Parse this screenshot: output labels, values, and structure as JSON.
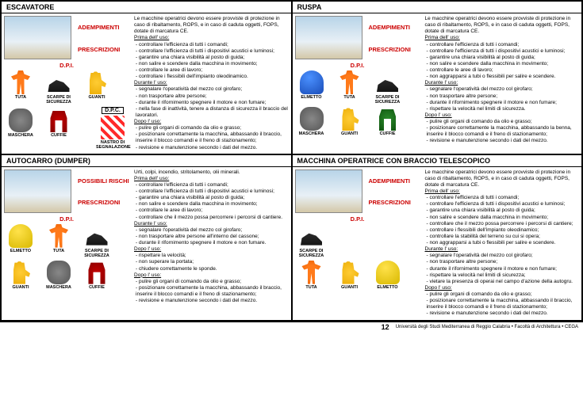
{
  "footer": {
    "page": "12",
    "credit": "Università degli Studi Mediterranea di Reggio Calabria • Facoltà di Architettura • CEGA",
    "sub": "Tesi di Laurea"
  },
  "common_adempimenti": "Le macchine operatrici devono essere provviste di protezione in caso di ribaltamento, ROPS, e in caso di caduta oggetti, FOPS, dotate di marcatura CE.",
  "labels": {
    "adem": "ADEMPIMENTI",
    "presc": "PRESCRIZIONI",
    "dpi": "D.P.I.",
    "dpc": "D.P.C.",
    "rischi": "POSSIBILI RISCHI"
  },
  "dpi_names": {
    "tuta": "TUTA",
    "scarpe": "SCARPE DI SICUREZZA",
    "guanti": "GUANTI",
    "elmetto": "ELMETTO",
    "maschera": "MASCHERA",
    "cuffie": "CUFFIE",
    "nastro": "NASTRO DI SEGNALAZIONE"
  },
  "q1": {
    "title": "ESCAVATORE",
    "dpi_row1": [
      "tuta",
      "scarpe",
      "guanti"
    ],
    "dpi_row2": [
      "maschera",
      "cuffie"
    ],
    "dpc": [
      "nastro"
    ],
    "phases": [
      {
        "h": "Prima dell' uso:",
        "items": [
          "controllare l'efficienza di tutti i comandi;",
          "controllare l'efficienza di tutti i dispositivi acustici e luminosi;",
          "garantire una chiara visibilità al posto di guida;",
          "non salire e scendere dalla macchina in movimento;",
          "controllare le aree di lavoro;",
          "controllare i flessibili dell'impianto oleodinamico."
        ]
      },
      {
        "h": "Durante l' uso:",
        "items": [
          "segnalare l'operatività del mezzo col girofaro;",
          "non trasportare altre persone;",
          "durante il rifornimento spegnere il motore e non fumare;",
          "nella fase di inattività, tenere a distanza di sicurezza il braccio del lavoratori."
        ]
      },
      {
        "h": "Dopo l' uso:",
        "items": [
          "pulire gli organi di comando da olio e grasso;",
          "posizionare correttamente la macchina, abbassando il braccio, inserire il blocco comandi e il freno di stazionamento;",
          "revisione e manutenzione secondo i dati del mezzo."
        ]
      }
    ]
  },
  "q2": {
    "title": "RUSPA",
    "dpi_row1": [
      "elmetto",
      "tuta",
      "scarpe"
    ],
    "dpi_row2": [
      "maschera",
      "guanti",
      "cuffie"
    ],
    "phases": [
      {
        "h": "Prima dell' uso:",
        "items": [
          "controllare l'efficienza di tutti i comandi;",
          "controllare l'efficienza di tutti i dispositivi acustici e luminosi;",
          "garantire una chiara visibilità al posto di guida;",
          "non salire e scendere dalla macchina in movimento;",
          "controllare le aree di lavoro;",
          "non aggrapparsi a tubi o flessibili per salire e scendere."
        ]
      },
      {
        "h": "Durante l' uso:",
        "items": [
          "segnalare l'operatività del mezzo col girofaro;",
          "non trasportare altre persone;",
          "durante il rifornimento spegnere il motore e non fumare;",
          "rispettare la velocità nel limiti di sicurezza."
        ]
      },
      {
        "h": "Dopo l' uso:",
        "items": [
          "pulire gli organi di comando da olio e grasso;",
          "posizionare correttamente la macchina, abbassando la benna, inserire il blocco comandi e il freno di stazionamento;",
          "revisione e manutenzione secondo i dati del mezzo."
        ]
      }
    ]
  },
  "q3": {
    "title": "AUTOCARRO (DUMPER)",
    "rischi": "Urti, colpi, incendio, stritolamento, olii minerali.",
    "dpi_row1": [
      "elmetto",
      "tuta",
      "scarpe"
    ],
    "dpi_row2": [
      "guanti",
      "maschera",
      "cuffie"
    ],
    "phases": [
      {
        "h": "Prima dell' uso:",
        "items": [
          "controllare l'efficienza di tutti i comandi;",
          "controllare l'efficienza di tutti i dispositivi acustici e luminosi;",
          "garantire una chiara visibilità al posto di guida;",
          "non salire e scendere dalla macchina in movimento;",
          "controllare le aree di lavoro;",
          "controllare che il mezzo possa percorrere i percorsi di cantiere."
        ]
      },
      {
        "h": "Durante l' uso:",
        "items": [
          "segnalare l'operatività del mezzo col girofaro;",
          "non trasportare altre persone all'interno del cassone;",
          "durante il rifornimento spegnere il motore e non fumare."
        ]
      },
      {
        "h": "Dopo l' uso:",
        "items": [
          "rispettare la velocità;",
          "non superare la portata;",
          "chiudere correttamente le sponde."
        ]
      },
      {
        "h": "Dopo l' uso:",
        "items": [
          "pulire gli organi di comando da olio e grasso;",
          "posizionare correttamente la macchina, abbassando il braccio, inserire il blocco comandi e il freno di stazionamento;",
          "revisione e manutenzione secondo i dati del mezzo."
        ]
      }
    ]
  },
  "q4": {
    "title": "MACCHINA OPERATRICE CON BRACCIO TELESCOPICO",
    "dpi_row1": [
      "scarpe"
    ],
    "dpi_row2": [
      "tuta",
      "guanti",
      "elmetto"
    ],
    "phases": [
      {
        "h": "Prima dell' uso:",
        "items": [
          "controllare l'efficienza di tutti i comandi;",
          "controllare l'efficienza di tutti i dispositivi acustici e luminosi;",
          "garantire una chiara visibilità al posto di guida;",
          "non salire e scendere dalla macchina in movimento;",
          "controllare che il mezzo possa percorrere i percorsi di cantiere;",
          "controllare i flessibili dell'impianto oleodinamico;",
          "controllare la stabilità del terreno su cui si opera;",
          "non aggrapparsi a tubi o flessibili per salire e scendere."
        ]
      },
      {
        "h": "Durante l' uso:",
        "items": [
          "segnalare l'operatività del mezzo col girofaro;",
          "non trasportare altre persone;",
          "durante il rifornimento spegnere il motore e non fumare;",
          "rispettare la velocità nel limiti di sicurezza;",
          "vietare la presenza di operai nel campo d'azione della autogru."
        ]
      },
      {
        "h": "Dopo l' uso:",
        "items": [
          "pulire gli organi di comando da olio e grasso;",
          "posizionare correttamente la macchina, abbassando il braccio, inserire il blocco comandi e il freno di stazionamento;",
          "revisione e manutenzione secondo i dati del mezzo."
        ]
      }
    ]
  }
}
